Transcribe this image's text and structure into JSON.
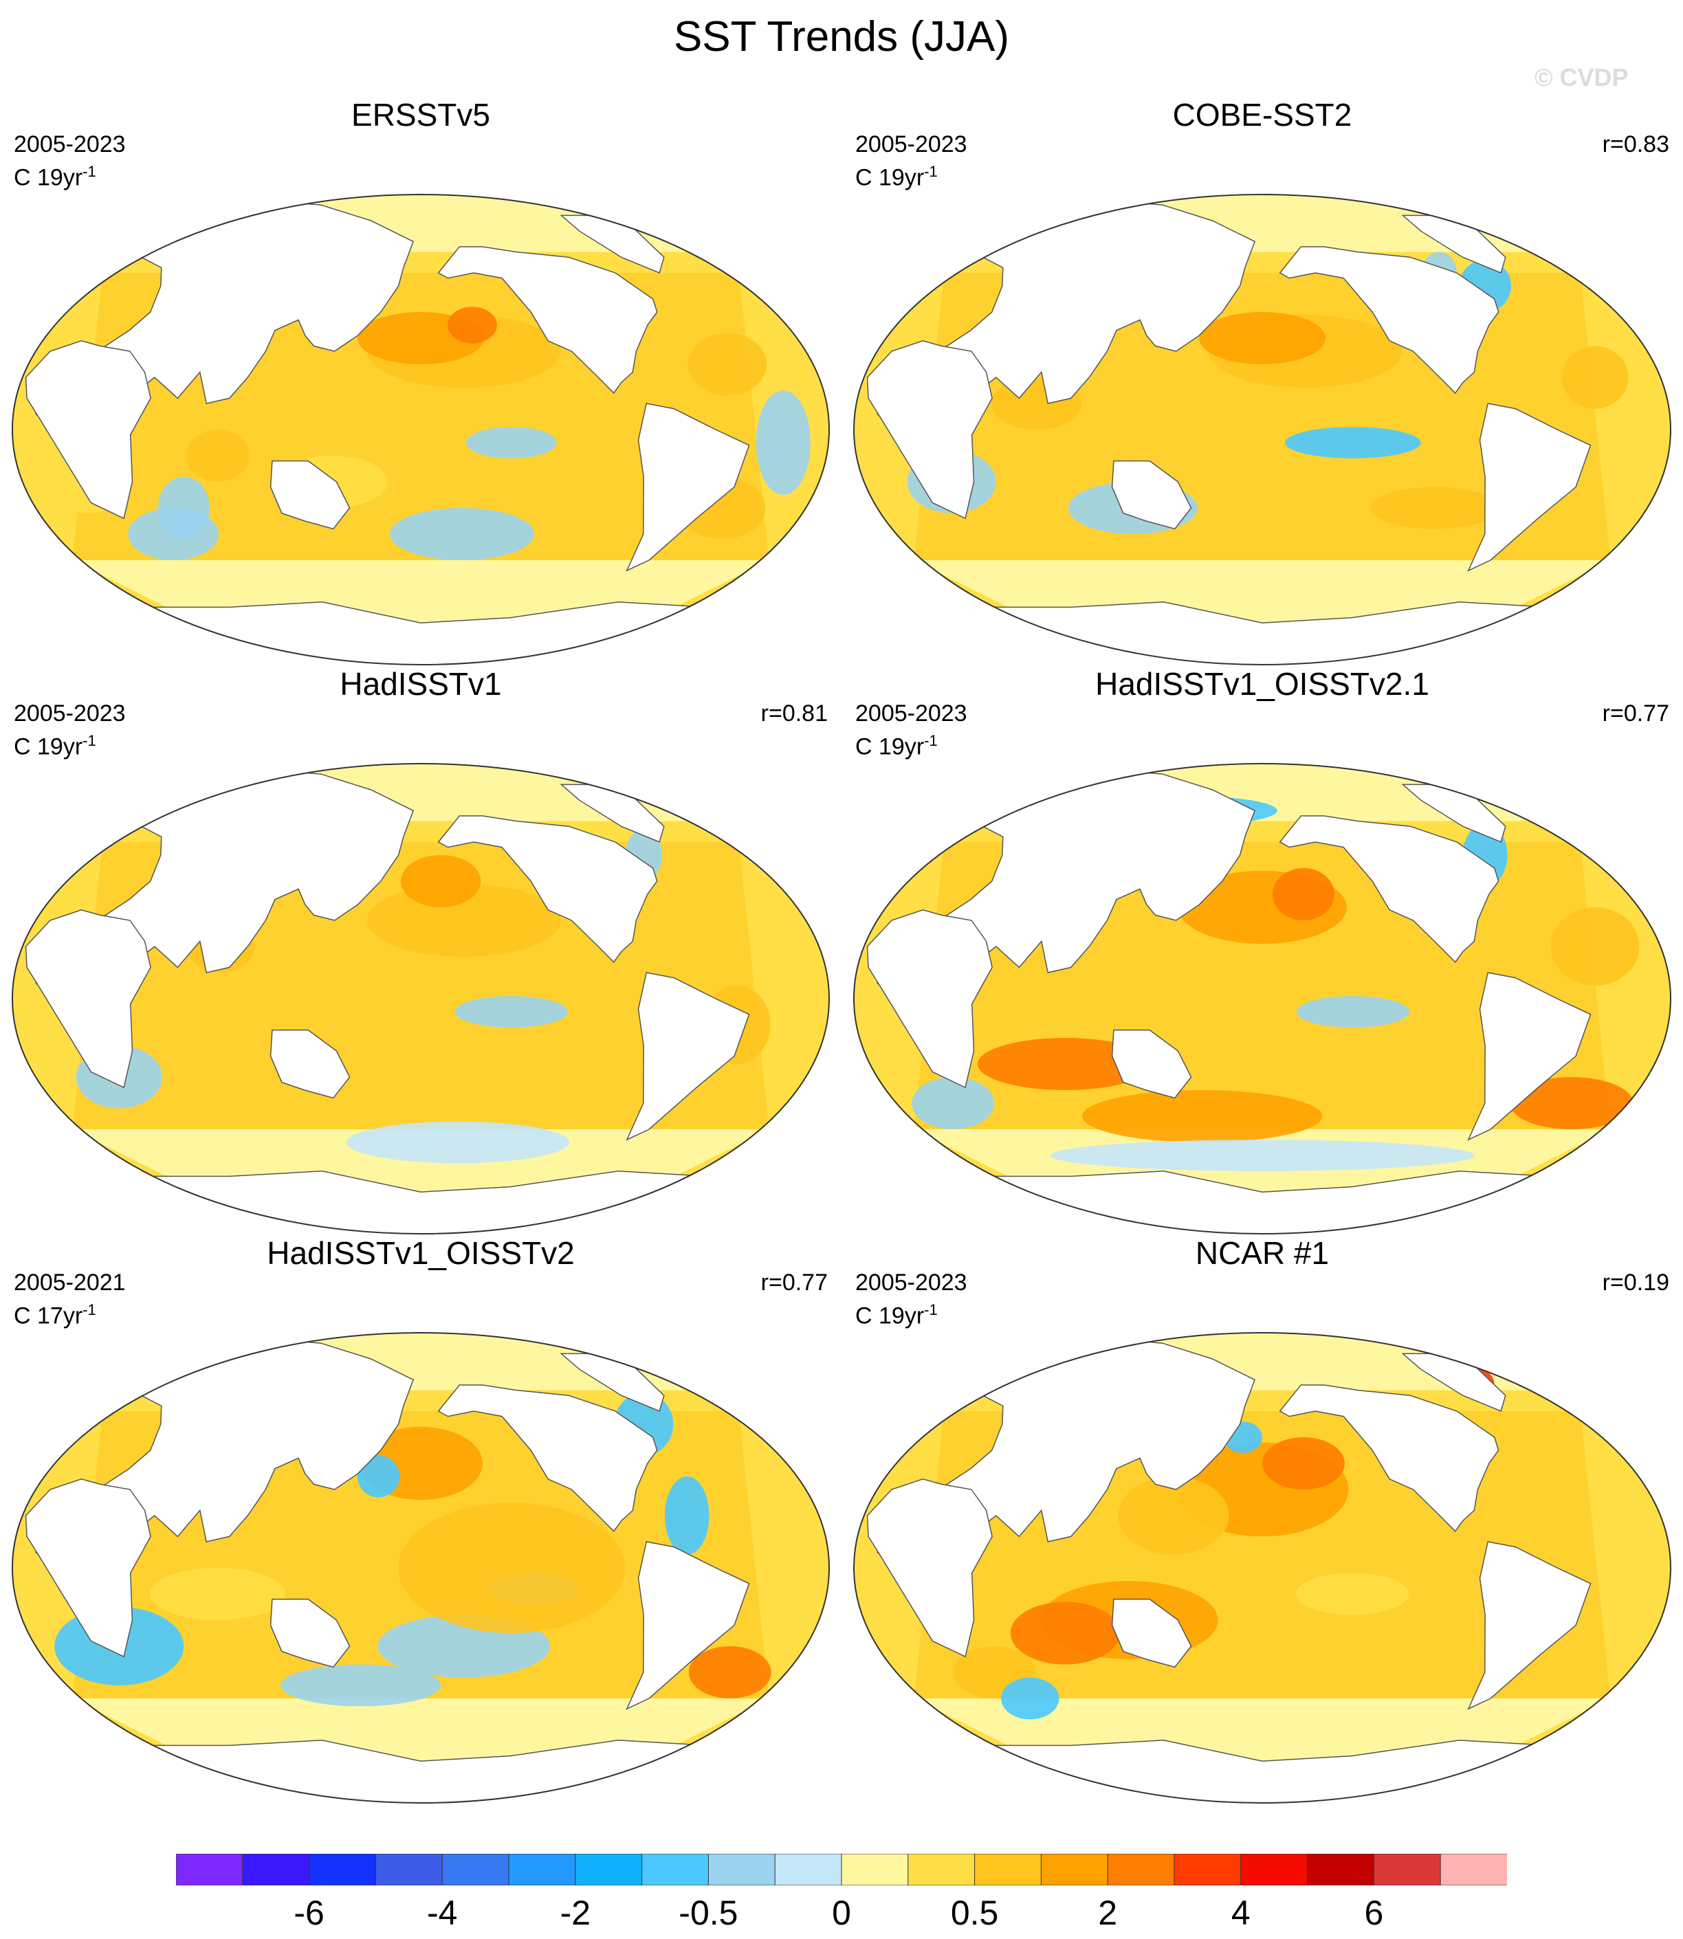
{
  "title": "SST Trends (JJA)",
  "watermark": "© CVDP",
  "panels": [
    {
      "name": "ERSSTv5",
      "period": "2005-2023",
      "units": "C 19yr",
      "units_exp": "-1",
      "corr": ""
    },
    {
      "name": "COBE-SST2",
      "period": "2005-2023",
      "units": "C 19yr",
      "units_exp": "-1",
      "corr": "r=0.83"
    },
    {
      "name": "HadISSTv1",
      "period": "2005-2023",
      "units": "C 19yr",
      "units_exp": "-1",
      "corr": "r=0.81"
    },
    {
      "name": "HadISSTv1_OISSTv2.1",
      "period": "2005-2023",
      "units": "C 19yr",
      "units_exp": "-1",
      "corr": "r=0.77"
    },
    {
      "name": "HadISSTv1_OISSTv2",
      "period": "2005-2021",
      "units": "C 17yr",
      "units_exp": "-1",
      "corr": "r=0.77"
    },
    {
      "name": "NCAR #1",
      "period": "2005-2023",
      "units": "C 19yr",
      "units_exp": "-1",
      "corr": "r=0.19"
    }
  ],
  "colorbar": {
    "colors": [
      "#7f27ff",
      "#3a18ff",
      "#1432ff",
      "#3c5be6",
      "#3779f0",
      "#2398ff",
      "#10b2ff",
      "#4bc8ff",
      "#9bd3f0",
      "#c5e6f8",
      "#fff7a0",
      "#ffdf45",
      "#ffc41e",
      "#ffa200",
      "#ff7d00",
      "#ff3c00",
      "#f50b00",
      "#c30000",
      "#dc3737",
      "#ffb4b4"
    ],
    "labels": [
      "-6",
      "-4",
      "-2",
      "-0.5",
      "0",
      "0.5",
      "2",
      "4",
      "6"
    ],
    "label_boundaries": [
      2,
      4,
      6,
      8,
      10,
      12,
      14,
      16,
      18
    ]
  }
}
